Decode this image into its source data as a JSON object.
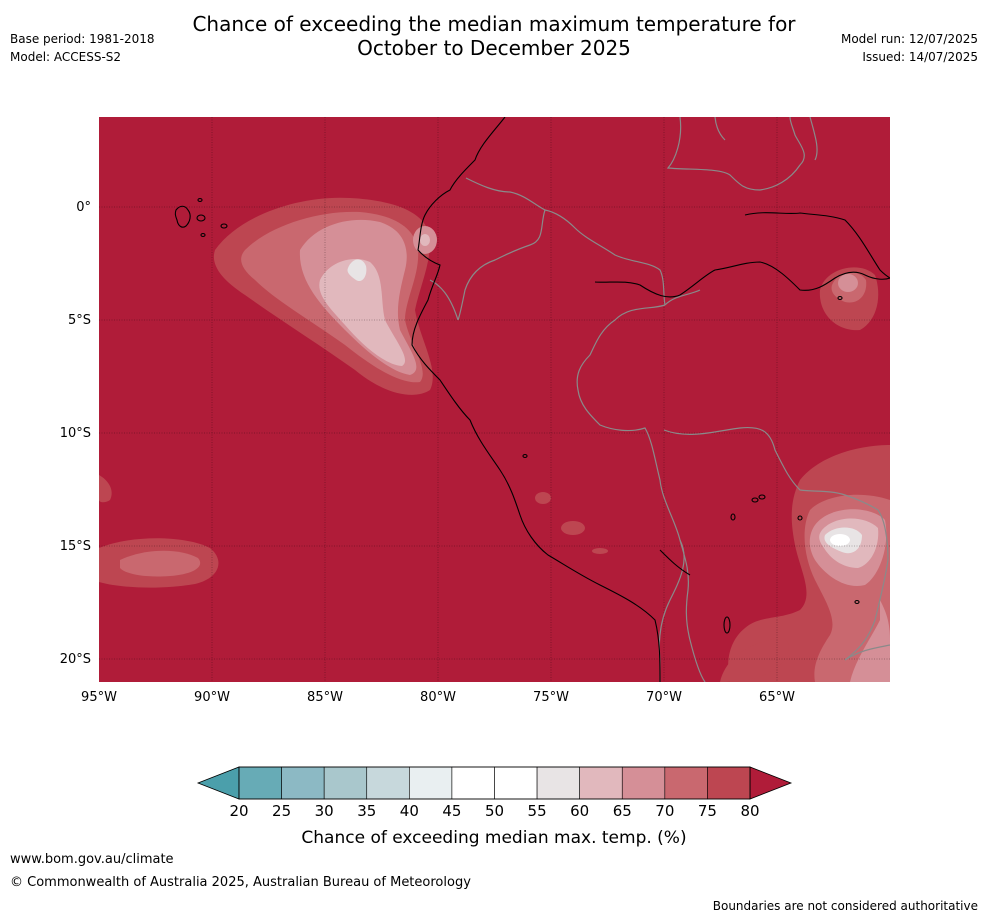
{
  "header": {
    "base_period": "Base period: 1981-2018",
    "model": "Model: ACCESS-S2",
    "title_line1": "Chance of exceeding the median maximum temperature for",
    "title_line2": "October to December 2025",
    "model_run": "Model run: 12/07/2025",
    "issued": "Issued: 14/07/2025"
  },
  "map": {
    "lat_labels": [
      "0°",
      "5°S",
      "10°S",
      "15°S",
      "20°S"
    ],
    "lon_labels": [
      "95°W",
      "90°W",
      "85°W",
      "80°W",
      "75°W",
      "70°W",
      "65°W"
    ],
    "background_color": "#b01c39"
  },
  "colorbar": {
    "title": "Chance of exceeding median max. temp. (%)",
    "ticks": [
      "20",
      "25",
      "30",
      "35",
      "40",
      "45",
      "50",
      "55",
      "60",
      "65",
      "70",
      "75",
      "80"
    ],
    "low_color": "#4b9fab",
    "high_color": "#b01c39",
    "colors": [
      "#67abb6",
      "#8cb9c4",
      "#a9c7cc",
      "#c7d8dc",
      "#e9eff1",
      "#ffffff",
      "#ffffff",
      "#e8e4e5",
      "#e1b8bd",
      "#d58f97",
      "#c9686f",
      "#bd4651"
    ]
  },
  "footer": {
    "website": "www.bom.gov.au/climate",
    "copyright": "© Commonwealth of Australia 2025, Australian Bureau of Meteorology",
    "note": "Boundaries are not considered authoritative"
  }
}
